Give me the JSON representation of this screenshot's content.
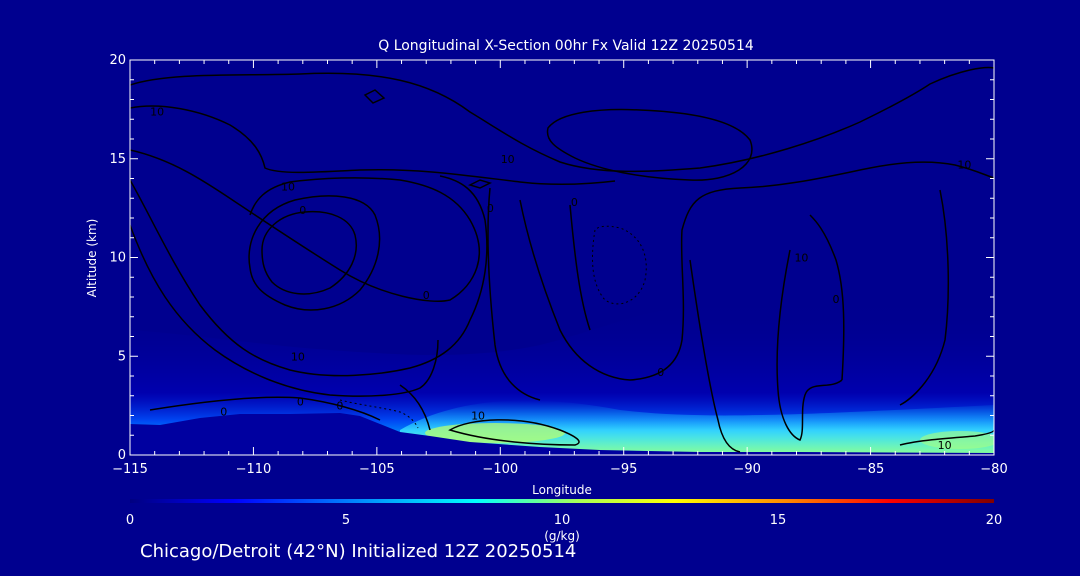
{
  "chart_data": {
    "type": "contour",
    "title": "Q Longitudinal X-Section 00hr  Fx Valid 12Z 20250514",
    "xlabel": "Longitude",
    "ylabel": "Altitude (km)",
    "xlim": [
      -115,
      -80
    ],
    "ylim": [
      0,
      20
    ],
    "x_ticks": [
      -115,
      -110,
      -105,
      -100,
      -95,
      -90,
      -85,
      -80
    ],
    "x_tick_labels": [
      "−115",
      "−110",
      "−105",
      "−100",
      "−95",
      "−90",
      "−85",
      "−80"
    ],
    "y_ticks": [
      0,
      5,
      10,
      15,
      20
    ],
    "y_tick_labels": [
      "0",
      "5",
      "10",
      "15",
      "20"
    ],
    "contour_labels": [
      {
        "text": "10",
        "lon": -113.9,
        "alt": 17.4
      },
      {
        "text": "10",
        "lon": -108.6,
        "alt": 13.6
      },
      {
        "text": "0",
        "lon": -108.0,
        "alt": 12.4
      },
      {
        "text": "0",
        "lon": -103.0,
        "alt": 8.1
      },
      {
        "text": "10",
        "lon": -108.2,
        "alt": 5.0
      },
      {
        "text": "0",
        "lon": -111.2,
        "alt": 2.2
      },
      {
        "text": "0",
        "lon": -108.1,
        "alt": 2.7
      },
      {
        "text": "0",
        "lon": -106.5,
        "alt": 2.5
      },
      {
        "text": "10",
        "lon": -100.9,
        "alt": 2.0
      },
      {
        "text": "10",
        "lon": -99.7,
        "alt": 15.0
      },
      {
        "text": "0",
        "lon": -100.4,
        "alt": 12.5
      },
      {
        "text": "0",
        "lon": -97.0,
        "alt": 12.8
      },
      {
        "text": "0",
        "lon": -93.5,
        "alt": 4.2
      },
      {
        "text": "10",
        "lon": -87.8,
        "alt": 10.0
      },
      {
        "text": "0",
        "lon": -86.4,
        "alt": 7.9
      },
      {
        "text": "10",
        "lon": -81.2,
        "alt": 14.7
      },
      {
        "text": "10",
        "lon": -82.0,
        "alt": 0.5
      }
    ],
    "colorbar": {
      "ticks": [
        0,
        5,
        10,
        15,
        20
      ],
      "tick_labels": [
        "0",
        "5",
        "10",
        "15",
        "20"
      ],
      "units": "(g/kg)",
      "colormap": [
        "#000080",
        "#0000ff",
        "#00aaff",
        "#00ffff",
        "#aaff55",
        "#ffff00",
        "#ff8800",
        "#ff0000",
        "#800000"
      ]
    },
    "subtitle": "Chicago/Detroit (42°N) Initialized 12Z 20250514"
  },
  "colors": {
    "background": "#00008f",
    "contour": "#000000",
    "terrain": "#0000a0"
  }
}
